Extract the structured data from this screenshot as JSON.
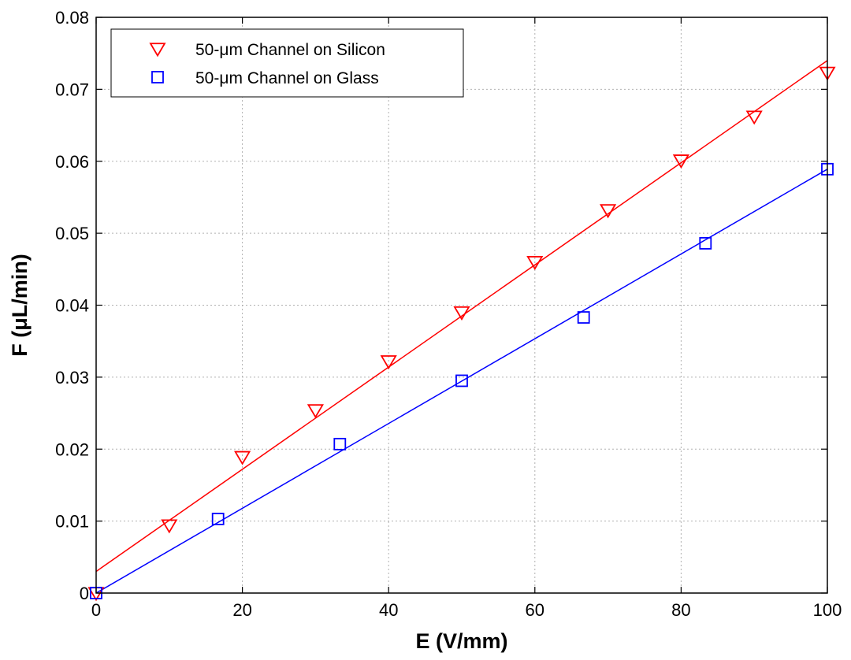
{
  "chart_data": {
    "type": "scatter",
    "xlabel": "E (V/mm)",
    "ylabel": "F (μL/min)",
    "xlim": [
      0,
      100
    ],
    "ylim": [
      0,
      0.08
    ],
    "xticks": [
      0,
      20,
      40,
      60,
      80,
      100
    ],
    "yticks": [
      0,
      0.01,
      0.02,
      0.03,
      0.04,
      0.05,
      0.06,
      0.07,
      0.08
    ],
    "xtick_labels": [
      "0",
      "20",
      "40",
      "60",
      "80",
      "100"
    ],
    "ytick_labels": [
      "0",
      "0.01",
      "0.02",
      "0.03",
      "0.04",
      "0.05",
      "0.06",
      "0.07",
      "0.08"
    ],
    "grid": true,
    "legend_position": "top-left",
    "series": [
      {
        "name": "50-μm Channel on Silicon",
        "marker": "triangle-down",
        "color": "#ff0000",
        "x": [
          0,
          10,
          20,
          30,
          40,
          50,
          60,
          70,
          80,
          90,
          100
        ],
        "y": [
          0.0,
          0.0094,
          0.0189,
          0.0254,
          0.0322,
          0.039,
          0.046,
          0.0532,
          0.0601,
          0.0662,
          0.0723
        ],
        "fit": {
          "x": [
            0,
            100
          ],
          "y": [
            0.003,
            0.074
          ]
        }
      },
      {
        "name": "50-μm Channel on Glass",
        "marker": "square",
        "color": "#0000ff",
        "x": [
          0,
          16.67,
          33.33,
          50,
          66.67,
          83.33,
          100
        ],
        "y": [
          0.0,
          0.0103,
          0.0207,
          0.0295,
          0.0383,
          0.0486,
          0.0589
        ],
        "fit": {
          "x": [
            0,
            100
          ],
          "y": [
            0.0,
            0.0589
          ]
        }
      }
    ]
  }
}
